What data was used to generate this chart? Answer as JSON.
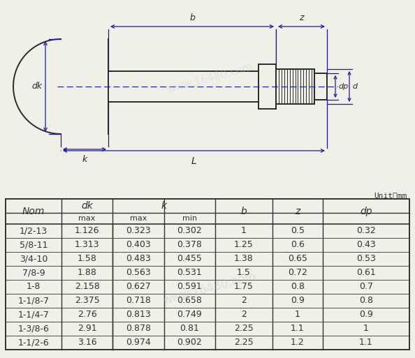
{
  "unit_label": "Unit：mm",
  "rows": [
    [
      "1/2-13",
      "1.126",
      "0.323",
      "0.302",
      "1",
      "0.5",
      "0.32"
    ],
    [
      "5/8-11",
      "1.313",
      "0.403",
      "0.378",
      "1.25",
      "0.6",
      "0.43"
    ],
    [
      "3/4-10",
      "1.58",
      "0.483",
      "0.455",
      "1.38",
      "0.65",
      "0.53"
    ],
    [
      "7/8-9",
      "1.88",
      "0.563",
      "0.531",
      "1.5",
      "0.72",
      "0.61"
    ],
    [
      "1-8",
      "2.158",
      "0.627",
      "0.591",
      "1.75",
      "0.8",
      "0.7"
    ],
    [
      "1-1/8-7",
      "2.375",
      "0.718",
      "0.658",
      "2",
      "0.9",
      "0.8"
    ],
    [
      "1-1/4-7",
      "2.76",
      "0.813",
      "0.749",
      "2",
      "1",
      "0.9"
    ],
    [
      "1-3/8-6",
      "2.91",
      "0.878",
      "0.81",
      "2.25",
      "1.1",
      "1"
    ],
    [
      "1-1/2-6",
      "3.16",
      "0.974",
      "0.902",
      "2.25",
      "1.2",
      "1.1"
    ]
  ],
  "bg_color": "#f0efe8",
  "line_color": "#2a2a2a",
  "dim_color": "#1a1aaa",
  "table_line_color": "#333333"
}
